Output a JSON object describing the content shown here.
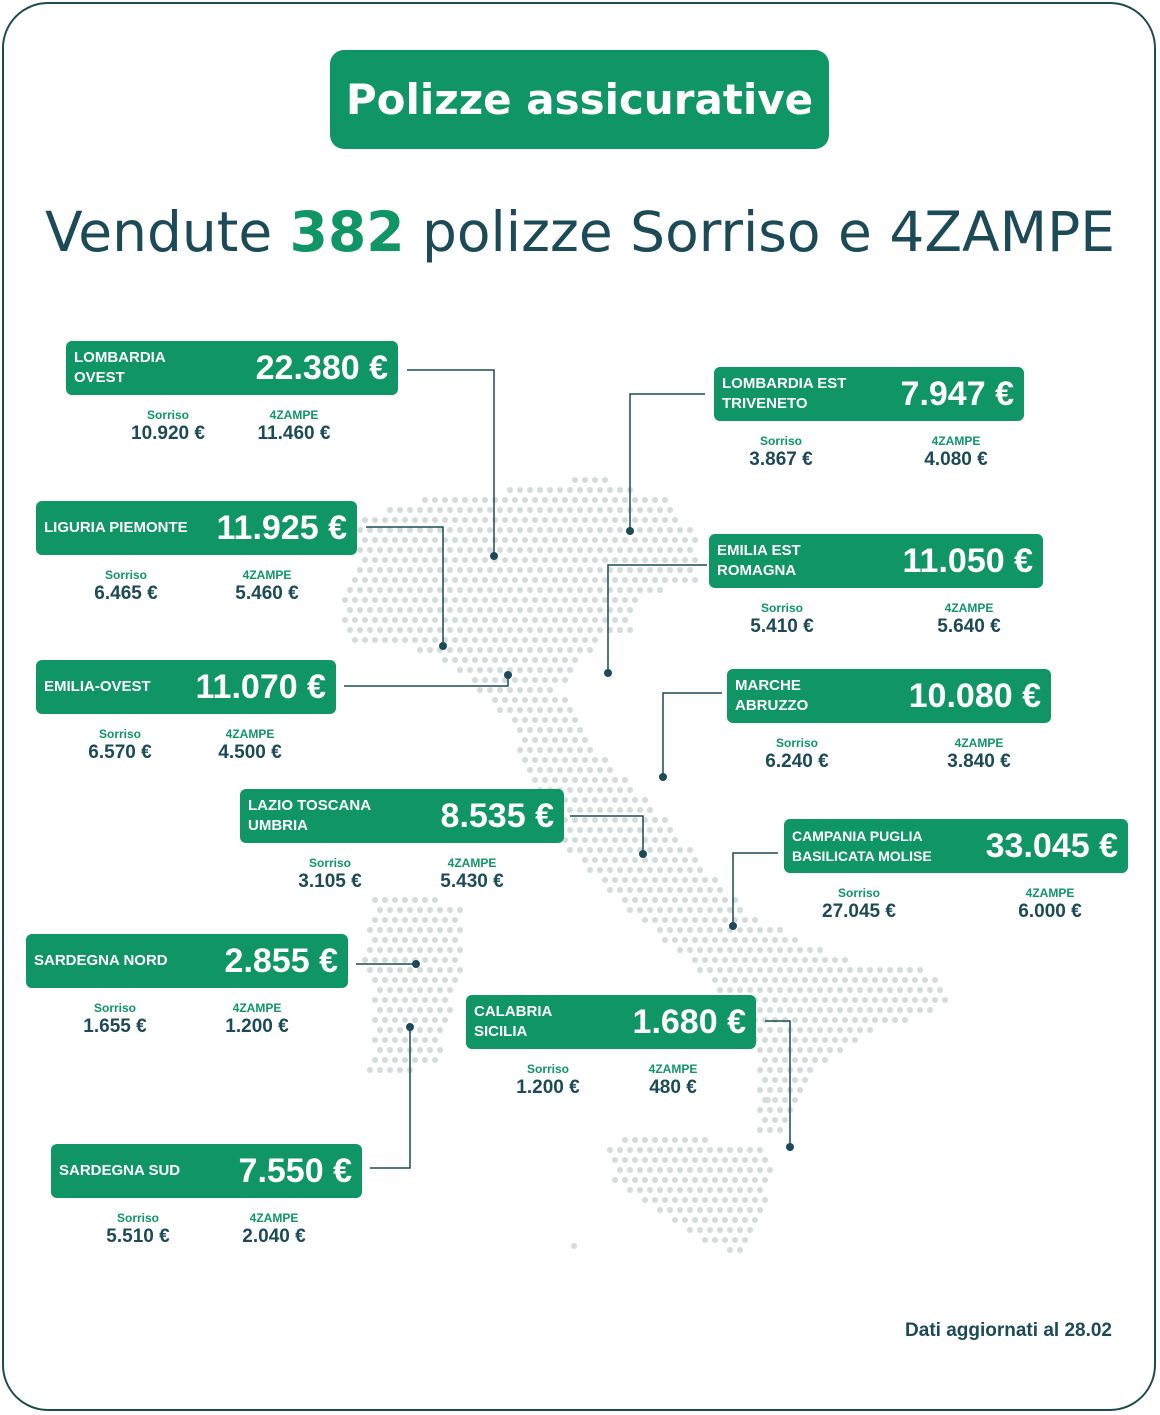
{
  "title": "Polizze assicurative",
  "headline": {
    "prefix": "Vendute",
    "number": "382",
    "suffix": "polizze Sorriso e 4ZAMPE"
  },
  "sub_labels": {
    "a": "Sorriso",
    "b": "4ZAMPE"
  },
  "footer": "Dati aggiornati al 28.02",
  "colors": {
    "green": "#0f9566",
    "dark": "#1c4a56",
    "dots": "#d3dcda"
  },
  "regions": [
    {
      "name": "LOMBARDIA OVEST",
      "total": "22.380 €",
      "sorriso": "10.920 €",
      "zampe": "11.460 €"
    },
    {
      "name": "LOMBARDIA EST TRIVENETO",
      "total": "7.947 €",
      "sorriso": "3.867 €",
      "zampe": "4.080 €"
    },
    {
      "name": "LIGURIA PIEMONTE",
      "total": "11.925 €",
      "sorriso": "6.465 €",
      "zampe": "5.460 €"
    },
    {
      "name": "EMILIA EST ROMAGNA",
      "total": "11.050 €",
      "sorriso": "5.410 €",
      "zampe": "5.640 €"
    },
    {
      "name": "EMILIA-OVEST",
      "total": "11.070 €",
      "sorriso": "6.570 €",
      "zampe": "4.500 €"
    },
    {
      "name": "MARCHE ABRUZZO",
      "total": "10.080 €",
      "sorriso": "6.240 €",
      "zampe": "3.840 €"
    },
    {
      "name": "LAZIO TOSCANA UMBRIA",
      "total": "8.535 €",
      "sorriso": "3.105 €",
      "zampe": "5.430 €"
    },
    {
      "name": "CAMPANIA PUGLIA BASILICATA MOLISE",
      "total": "33.045 €",
      "sorriso": "27.045 €",
      "zampe": "6.000 €"
    },
    {
      "name": "SARDEGNA NORD",
      "total": "2.855 €",
      "sorriso": "1.655 €",
      "zampe": "1.200 €"
    },
    {
      "name": "CALABRIA SICILIA",
      "total": "1.680 €",
      "sorriso": "1.200 €",
      "zampe": "480 €"
    },
    {
      "name": "SARDEGNA SUD",
      "total": "7.550 €",
      "sorriso": "5.510 €",
      "zampe": "2.040 €"
    }
  ]
}
